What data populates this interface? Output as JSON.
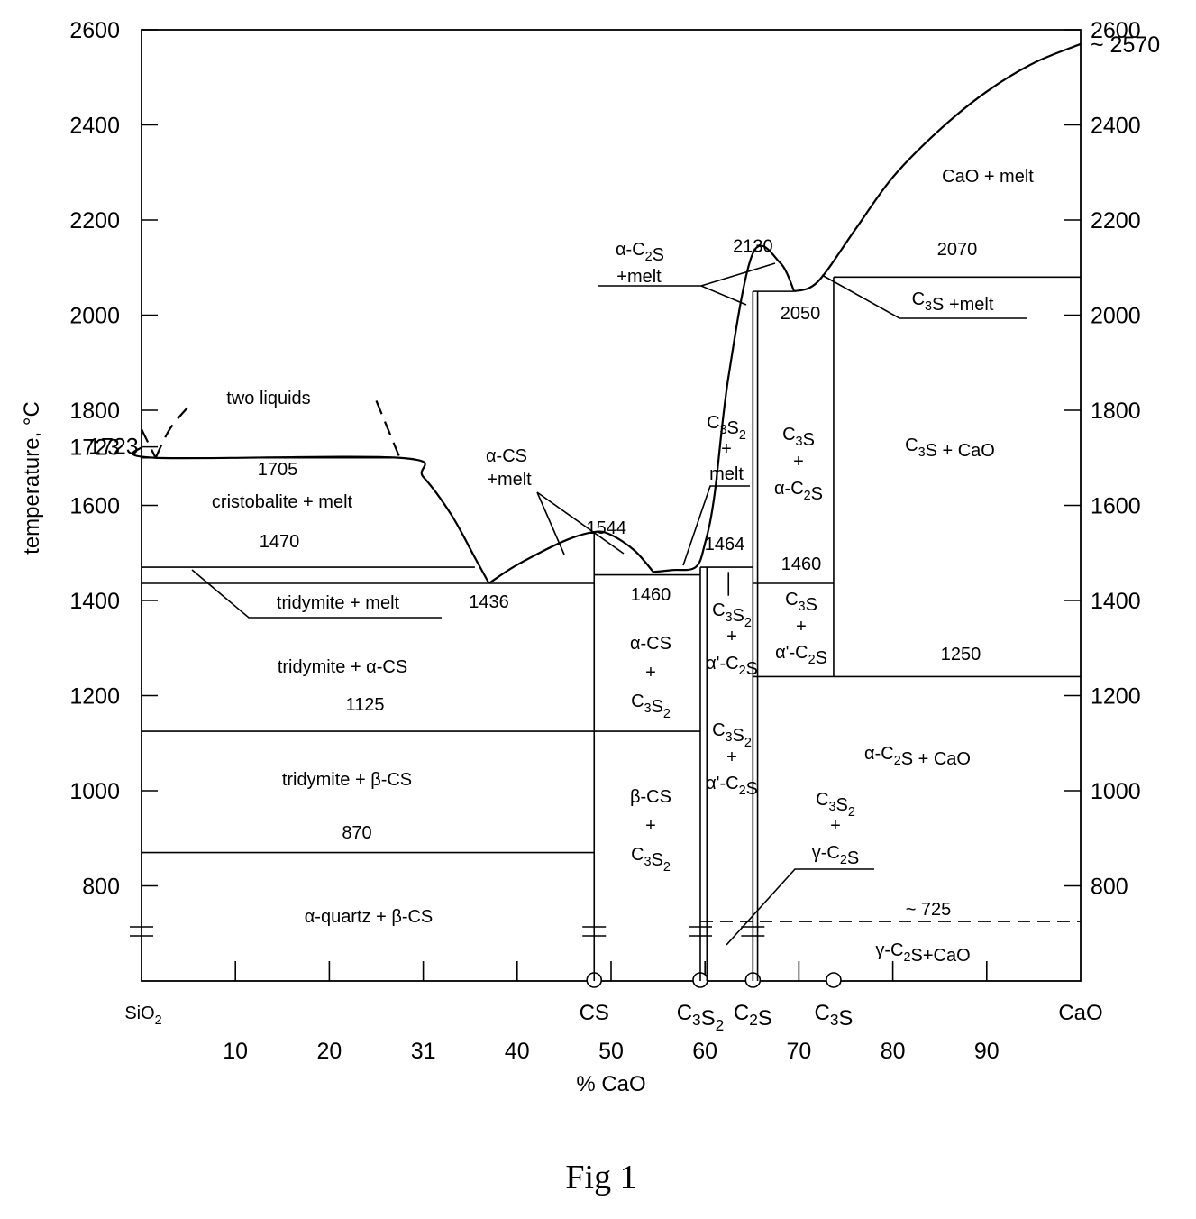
{
  "chart_data": {
    "type": "line",
    "xlabel": "% CaO",
    "ylabel": "temperature, °C",
    "xlim": [
      0,
      100
    ],
    "ylim": [
      600,
      2600
    ],
    "y_ticks_left": [
      "2600",
      "2400",
      "2200",
      "2000",
      "1800",
      "1723",
      "1600",
      "1400",
      "1200",
      "1000",
      "800"
    ],
    "y_ticks_left_values": [
      2600,
      2400,
      2200,
      2000,
      1800,
      1723,
      1600,
      1400,
      1200,
      1000,
      800
    ],
    "y_ticks_right": [
      "2600",
      "~ 2570",
      "2400",
      "2200",
      "2000",
      "1800",
      "1600",
      "1400",
      "1200",
      "1000",
      "800"
    ],
    "y_ticks_right_values": [
      2600,
      2570,
      2400,
      2200,
      2000,
      1800,
      1600,
      1400,
      1200,
      1000,
      800
    ],
    "x_ticks": [
      "10",
      "20",
      "31",
      "40",
      "50",
      "60",
      "70",
      "80",
      "90"
    ],
    "x_tick_values": [
      10,
      20,
      30,
      40,
      50,
      60,
      70,
      80,
      90
    ],
    "compounds": [
      {
        "label": "SiO₂",
        "x": 0
      },
      {
        "label": "CS",
        "x": 48.2
      },
      {
        "label": "C₃S₂",
        "x": 59.5
      },
      {
        "label": "C₂S",
        "x": 65.1
      },
      {
        "label": "C₃S",
        "x": 73.7
      },
      {
        "label": "CaO",
        "x": 100
      }
    ],
    "liquidus": [
      {
        "name": "silica-liquidus",
        "points": [
          [
            0,
            1723
          ],
          [
            1.5,
            1700
          ],
          [
            27.5,
            1700
          ],
          [
            30,
            1660
          ],
          [
            33,
            1580
          ],
          [
            35.5,
            1490
          ],
          [
            37,
            1436
          ]
        ]
      },
      {
        "name": "cs-liquidus",
        "points": [
          [
            37,
            1436
          ],
          [
            40,
            1475
          ],
          [
            45,
            1525
          ],
          [
            48.2,
            1544
          ],
          [
            50,
            1538
          ],
          [
            52.5,
            1505
          ],
          [
            54.5,
            1460
          ]
        ]
      },
      {
        "name": "c3s2-liquidus",
        "points": [
          [
            54.5,
            1460
          ],
          [
            56.5,
            1464
          ],
          [
            59,
            1470
          ],
          [
            60,
            1520
          ],
          [
            61,
            1620
          ],
          [
            62.5,
            1870
          ],
          [
            65.1,
            2130
          ],
          [
            68,
            2110
          ],
          [
            69.5,
            2050
          ]
        ]
      },
      {
        "name": "c3s-liquidus",
        "points": [
          [
            69.5,
            2050
          ],
          [
            72,
            2070
          ],
          [
            76,
            2180
          ],
          [
            80,
            2290
          ],
          [
            85,
            2390
          ],
          [
            90,
            2470
          ],
          [
            95,
            2530
          ],
          [
            100,
            2570
          ]
        ]
      }
    ],
    "miscibility_gap": [
      {
        "points": [
          [
            0,
            1760
          ],
          [
            1.5,
            1700
          ]
        ]
      },
      {
        "points": [
          [
            1.5,
            1700
          ],
          [
            3,
            1760
          ],
          [
            5,
            1808
          ]
        ]
      },
      {
        "points": [
          [
            25,
            1820
          ],
          [
            27.5,
            1700
          ]
        ]
      }
    ],
    "isotherms": [
      {
        "value": "1705",
        "T": 1700,
        "x_range": [
          0,
          27.5
        ]
      },
      {
        "value": "1470",
        "T": 1470,
        "x_range": [
          0,
          35.5
        ]
      },
      {
        "value": "1436",
        "T": 1436,
        "x_range": [
          0,
          48.2
        ]
      },
      {
        "value": "1125",
        "T": 1125,
        "x_range": [
          0,
          59.5
        ]
      },
      {
        "value": "870",
        "T": 870,
        "x_range": [
          0,
          48.2
        ]
      },
      {
        "value": "1460",
        "T": 1454,
        "x_range": [
          48.2,
          59.5
        ]
      },
      {
        "value": "1464",
        "T": 1470,
        "x_range": [
          59.5,
          65.1
        ]
      },
      {
        "value": "1460",
        "T": 1436,
        "x_range": [
          65.1,
          73.7
        ]
      },
      {
        "value": "2050",
        "T": 2050,
        "x_range": [
          65.1,
          69.5
        ]
      },
      {
        "value": "2070",
        "T": 2080,
        "x_range": [
          73.7,
          100
        ]
      },
      {
        "value": "1250",
        "T": 1240,
        "x_range": [
          65.1,
          100
        ]
      },
      {
        "value": "~ 725",
        "T": 725,
        "x_range": [
          59.5,
          100
        ],
        "dashed": true
      }
    ],
    "point_labels": [
      {
        "value": "1723",
        "x": 1.6,
        "T": 1723
      },
      {
        "value": "1544",
        "x": 49.5,
        "T": 1555
      },
      {
        "value": "1436",
        "x": 37,
        "T": 1400
      },
      {
        "value": "2130",
        "x": 65.1,
        "T": 2148
      }
    ],
    "regions": [
      "two liquids",
      "cristobalite + melt",
      "tridymite + melt",
      "tridymite + α-CS",
      "tridymite + β-CS",
      "α-quartz + β-CS",
      "α-CS +melt",
      "α-CS + C₃S₂",
      "β-CS + C₃S₂",
      "C₃S₂ + melt",
      "α-C₂S +melt",
      "C₃S₂ + α'-C₂S",
      "C₃S + α-C₂S",
      "C₃S + α'-C₂S",
      "C₃S₂ + γ-C₂S",
      "C₃S +melt",
      "CaO + melt",
      "C₃S + CaO",
      "α-C₂S + CaO",
      "γ-C₂S+CaO"
    ]
  },
  "figure": {
    "caption": "Fig 1"
  }
}
